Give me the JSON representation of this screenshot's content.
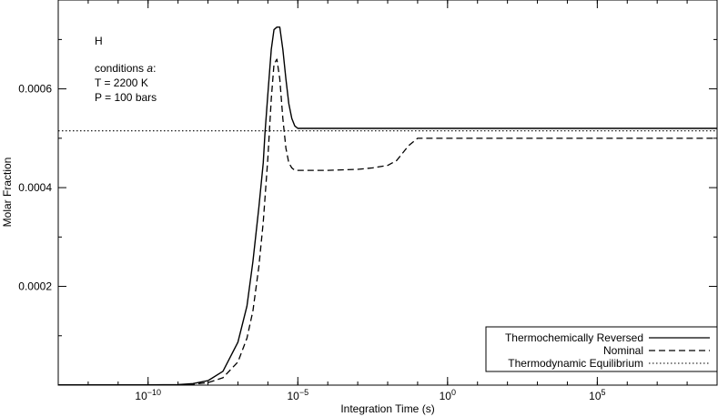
{
  "chart_data": {
    "type": "line",
    "title": "",
    "xlabel": "Integration Time (s)",
    "ylabel": "Molar Fraction",
    "x_scale": "log",
    "xlim": [
      1e-13,
      1000000000.0
    ],
    "ylim": [
      0,
      0.00078
    ],
    "x_ticks": [
      {
        "value": 1e-10,
        "base": "10",
        "exp": "−10"
      },
      {
        "value": 1e-05,
        "base": "10",
        "exp": "−5"
      },
      {
        "value": 1,
        "base": "10",
        "exp": "0"
      },
      {
        "value": 100000.0,
        "base": "10",
        "exp": "5"
      }
    ],
    "y_ticks": [
      {
        "value": 0.0002,
        "label": "0.0002"
      },
      {
        "value": 0.0004,
        "label": "0.0004"
      },
      {
        "value": 0.0006,
        "label": "0.0006"
      }
    ],
    "annotation": {
      "species": "H",
      "conditions_prefix": "conditions ",
      "conditions_var": "a",
      "conditions_suffix": ":",
      "temperature": "T = 2200 K",
      "pressure": "P = 100 bars"
    },
    "legend_position": "bottom-right",
    "series": [
      {
        "name": "Thermochemically Reversed",
        "style": "solid",
        "x": [
          1e-13,
          1e-10,
          1e-09,
          3.16e-09,
          1e-08,
          3.16e-08,
          1e-07,
          2e-07,
          3.16e-07,
          5e-07,
          7e-07,
          8e-07,
          1e-06,
          1.3e-06,
          1.6e-06,
          2e-06,
          2.5e-06,
          3.16e-06,
          4e-06,
          5e-06,
          6.3e-06,
          7.9e-06,
          1e-05,
          3e-05,
          0.0001,
          0.001,
          0.01,
          0.1,
          1,
          1000000000.0
        ],
        "y": [
          5e-07,
          5e-07,
          1e-06,
          3e-06,
          9e-06,
          2.8e-05,
          8.7e-05,
          0.00016,
          0.00025,
          0.00036,
          0.00045,
          0.00051,
          0.00059,
          0.00068,
          0.00072,
          0.000725,
          0.000725,
          0.00068,
          0.00062,
          0.00057,
          0.00054,
          0.000525,
          0.00052,
          0.00052,
          0.00052,
          0.00052,
          0.00052,
          0.00052,
          0.00052,
          0.00052
        ]
      },
      {
        "name": "Nominal",
        "style": "dashed",
        "x": [
          1e-13,
          1e-10,
          1e-09,
          3.16e-09,
          1e-08,
          3.16e-08,
          1e-07,
          2e-07,
          3.16e-07,
          5e-07,
          7e-07,
          1e-06,
          1.3e-06,
          1.6e-06,
          2e-06,
          2.5e-06,
          3.16e-06,
          4e-06,
          5e-06,
          6.3e-06,
          7.9e-06,
          1e-05,
          0.0001,
          0.001,
          0.00316,
          0.01,
          0.02,
          0.0316,
          0.05,
          0.1,
          0.2,
          0.5,
          1,
          1000000000.0
        ],
        "y": [
          5e-07,
          5e-07,
          7e-07,
          2e-06,
          5e-06,
          1.5e-05,
          4.7e-05,
          9.5e-05,
          0.00015,
          0.00024,
          0.00033,
          0.00046,
          0.00058,
          0.00065,
          0.00066,
          0.00062,
          0.00054,
          0.00048,
          0.00045,
          0.00044,
          0.000435,
          0.000435,
          0.000435,
          0.000437,
          0.00044,
          0.000445,
          0.000455,
          0.00047,
          0.000485,
          0.0005,
          0.0005,
          0.0005,
          0.0005,
          0.0005
        ]
      },
      {
        "name": "Thermodynamic Equilibrium",
        "style": "dotted",
        "x": [
          1e-13,
          1000000000.0
        ],
        "y": [
          0.000515,
          0.000515
        ]
      }
    ]
  }
}
